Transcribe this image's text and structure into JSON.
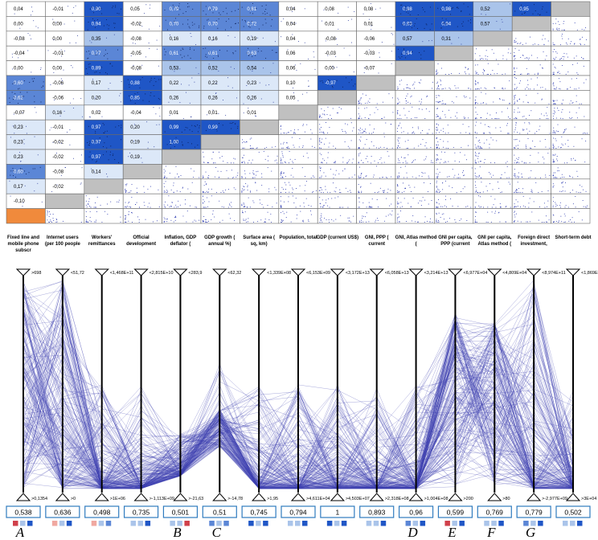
{
  "colors": {
    "dark_blue": "#1f56c6",
    "mid_blue": "#5b86d6",
    "light_blue": "#aac4ea",
    "pale_blue": "#dce8f8",
    "grey": "#c0c0c0",
    "orange": "#f08a3c",
    "line_blue": "#3b3fb0",
    "red": "#d0404a",
    "pink": "#f0a8a0"
  },
  "chart_data": [
    {
      "type": "heatmap",
      "title": "",
      "rows": [
        [
          "0,04",
          "-0,01",
          "0,90",
          "0,05",
          "0,79",
          "0,79",
          "0,81",
          "0,04",
          "0,08",
          "0,08",
          "0,98",
          "0,98",
          "0,52",
          "0,95",
          ""
        ],
        [
          "0,00",
          "0,00",
          "0,94",
          "-0,02",
          "0,70",
          "0,70",
          "0,72",
          "0,04",
          "0,01",
          "0,01",
          "0,93",
          "0,94",
          "0,57",
          "",
          ""
        ],
        [
          "-0,08",
          "0,00",
          "0,35",
          "-0,08",
          "0,16",
          "0,16",
          "0,19",
          "0,04",
          "-0,08",
          "-0,06",
          "0,57",
          "0,31",
          "",
          "",
          ""
        ],
        [
          "-0,04",
          "-0,01",
          "0,77",
          "-0,05",
          "0,61",
          "0,61",
          "0,63",
          "0,06",
          "-0,03",
          "-0,03",
          "0,94",
          "",
          "",
          "",
          ""
        ],
        [
          "0,00",
          "0,00",
          "0,89",
          "-0,08",
          "0,53",
          "0,52",
          "0,54",
          "0,06",
          "0,00",
          "-0,07",
          "",
          "",
          "",
          "",
          ""
        ],
        [
          "0,60",
          "-0,06",
          "0,17",
          "0,88",
          "0,22",
          "0,22",
          "0,23",
          "0,10",
          "-0,97",
          "",
          "",
          "",
          "",
          "",
          ""
        ],
        [
          "0,62",
          "-0,06",
          "0,20",
          "0,85",
          "0,26",
          "0,26",
          "0,26",
          "0,05",
          "",
          "",
          "",
          "",
          "",
          "",
          ""
        ],
        [
          "-0,07",
          "0,16",
          "0,02",
          "-0,04",
          "0,01",
          "0,01",
          "0,01",
          "",
          "",
          "",
          "",
          "",
          "",
          "",
          ""
        ],
        [
          "0,23",
          "-0,01",
          "0,97",
          "0,20",
          "0,99",
          "0,99",
          "",
          "",
          "",
          "",
          "",
          "",
          "",
          "",
          ""
        ],
        [
          "0,23",
          "-0,02",
          "0,97",
          "0,19",
          "1,00",
          "",
          "",
          "",
          "",
          "",
          "",
          "",
          "",
          "",
          ""
        ],
        [
          "0,23",
          "-0,02",
          "0,97",
          "0,19",
          "",
          "",
          "",
          "",
          "",
          "",
          "",
          "",
          "",
          "",
          ""
        ],
        [
          "0,60",
          "-0,08",
          "0,14",
          "",
          "",
          "",
          "",
          "",
          "",
          "",
          "",
          "",
          "",
          "",
          ""
        ],
        [
          "0,17",
          "-0,02",
          "",
          "",
          "",
          "",
          "",
          "",
          "",
          "",
          "",
          "",
          "",
          "",
          ""
        ],
        [
          "-0,10",
          "",
          "",
          "",
          "",
          "",
          "",
          "",
          "",
          "",
          "",
          "",
          "",
          "",
          ""
        ],
        [
          "",
          "",
          "",
          "",
          "",
          "",
          "",
          "",
          "",
          "",
          "",
          "",
          "",
          "",
          ""
        ]
      ]
    },
    {
      "type": "line",
      "title": "",
      "axes": [
        {
          "name": "Fixed line and mobile phone subscr",
          "top": ">698",
          "bottom": ">0,1354",
          "score": "0,538",
          "letter": "A",
          "score_colors": [
            "#d0404a",
            "#1f56c6"
          ]
        },
        {
          "name": "Internet users (per 100 people",
          "top": "<51,72",
          "bottom": ">0",
          "score": "0,636",
          "letter": "",
          "score_colors": [
            "#f0a8a0",
            "#1f56c6"
          ]
        },
        {
          "name": "Workers' remittances",
          "top": "<1,468E+11",
          "bottom": ">1E+06",
          "score": "0,498",
          "letter": "",
          "score_colors": [
            "#f0a8a0",
            "#5b86d6"
          ]
        },
        {
          "name": "Official development",
          "top": "<2,815E+10",
          "bottom": ">-1,113E+09",
          "score": "0,735",
          "letter": "",
          "score_colors": [
            "#aac4ea",
            "#1f56c6"
          ]
        },
        {
          "name": "Inflation, GDP deflator (",
          "top": "<283,9",
          "bottom": ">-21,63",
          "score": "0,501",
          "letter": "B",
          "score_colors": [
            "#aac4ea",
            "#d0404a"
          ]
        },
        {
          "name": "GDP growth ( annual %)",
          "top": "<62,32",
          "bottom": ">-14,78",
          "score": "0,51",
          "letter": "C",
          "score_colors": [
            "#5b86d6",
            "#5b86d6"
          ]
        },
        {
          "name": "Surface area ( sq, km)",
          "top": "<1,339E+08",
          "bottom": ">1,95",
          "score": "0,745",
          "letter": "",
          "score_colors": [
            "#1f56c6",
            "#1f56c6"
          ]
        },
        {
          "name": "Population, total",
          "top": "<6,153E+09",
          "bottom": ">4,611E+04",
          "score": "0,794",
          "letter": "",
          "score_colors": [
            "#aac4ea",
            "#1f56c6"
          ]
        },
        {
          "name": "GDP (current US$)",
          "top": "<3,172E+13",
          "bottom": ">4,503E+07",
          "score": "1",
          "letter": "",
          "score_colors": [
            "#1f56c6",
            "#1f56c6"
          ]
        },
        {
          "name": "GNI, PPP ( current",
          "top": "<6,058E+13",
          "bottom": ">2,318E+08",
          "score": "0,893",
          "letter": "",
          "score_colors": [
            "#aac4ea",
            "#1f56c6"
          ]
        },
        {
          "name": "GNI, Atlas method (",
          "top": "<3,214E+13",
          "bottom": ">1,004E+08",
          "score": "0,96",
          "letter": "D",
          "score_colors": [
            "#5b86d6",
            "#1f56c6"
          ]
        },
        {
          "name": "GNI per capita, PPP (current",
          "top": "<6,977E+04",
          "bottom": ">200",
          "score": "0,599",
          "letter": "E",
          "score_colors": [
            "#d0404a",
            "#1f56c6"
          ]
        },
        {
          "name": "GNI per capita, Atlas method (",
          "top": "<4,809E+04",
          "bottom": ">80",
          "score": "0,769",
          "letter": "F",
          "score_colors": [
            "#aac4ea",
            "#1f56c6"
          ]
        },
        {
          "name": "Foreign direct investment,",
          "top": "<8,974E+11",
          "bottom": ">-2,977E+09",
          "score": "0,779",
          "letter": "G",
          "score_colors": [
            "#5b86d6",
            "#1f56c6"
          ]
        },
        {
          "name": "Short-term debt",
          "top": "<1,869E+11",
          "bottom": ">3E+04",
          "score": "0,502",
          "letter": "",
          "score_colors": [
            "#aac4ea",
            "#1f56c6"
          ]
        }
      ]
    }
  ]
}
